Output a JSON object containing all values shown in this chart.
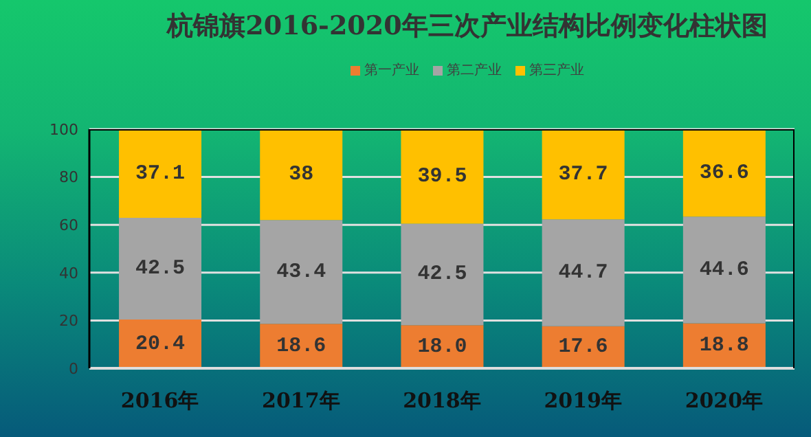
{
  "chart_data": {
    "type": "bar",
    "title": "杭锦旗2016-2020年三次产业结构比例变化柱状图",
    "categories": [
      "2016年",
      "2017年",
      "2018年",
      "2019年",
      "2020年"
    ],
    "stacked": true,
    "series": [
      {
        "name": "第一产业",
        "color": "#ed7d31",
        "values": [
          20.4,
          18.6,
          18.0,
          17.6,
          18.8
        ],
        "value_labels": [
          "20.4",
          "18.6",
          "18.0",
          "17.6",
          "18.8"
        ]
      },
      {
        "name": "第二产业",
        "color": "#a5a5a5",
        "values": [
          42.5,
          43.4,
          42.5,
          44.7,
          44.6
        ],
        "value_labels": [
          "42.5",
          "43.4",
          "42.5",
          "44.7",
          "44.6"
        ]
      },
      {
        "name": "第三产业",
        "color": "#ffc000",
        "values": [
          37.1,
          38,
          39.5,
          37.7,
          36.6
        ],
        "value_labels": [
          "37.1",
          "38",
          "39.5",
          "37.7",
          "36.6"
        ]
      }
    ],
    "ylim": [
      0,
      100
    ],
    "yticks": [
      0,
      20,
      40,
      60,
      80,
      100
    ],
    "grid": "y",
    "legend": "top"
  }
}
